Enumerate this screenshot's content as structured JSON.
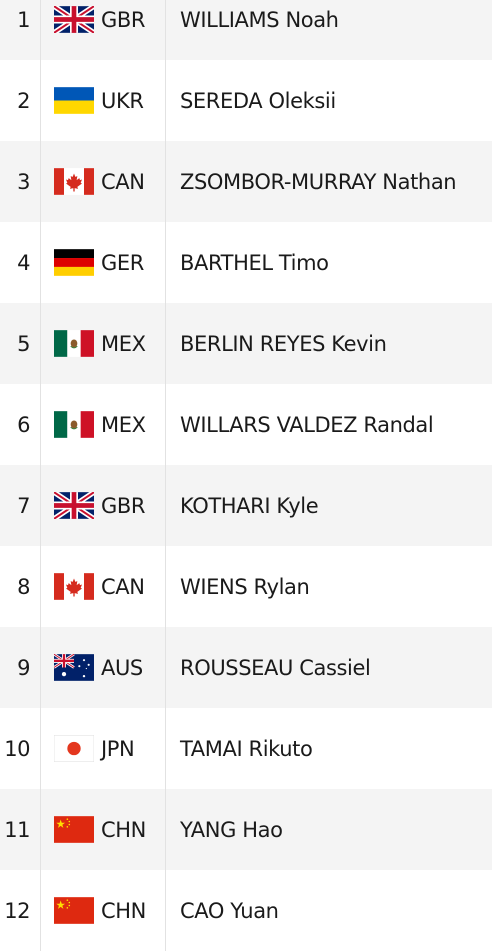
{
  "results": [
    {
      "rank": "1",
      "noc": "GBR",
      "flag_icon": "gbr-flag-icon",
      "athlete": "WILLIAMS Noah"
    },
    {
      "rank": "2",
      "noc": "UKR",
      "flag_icon": "ukr-flag-icon",
      "athlete": "SEREDA Oleksii"
    },
    {
      "rank": "3",
      "noc": "CAN",
      "flag_icon": "can-flag-icon",
      "athlete": "ZSOMBOR-MURRAY Nathan"
    },
    {
      "rank": "4",
      "noc": "GER",
      "flag_icon": "ger-flag-icon",
      "athlete": "BARTHEL Timo"
    },
    {
      "rank": "5",
      "noc": "MEX",
      "flag_icon": "mex-flag-icon",
      "athlete": "BERLIN REYES Kevin"
    },
    {
      "rank": "6",
      "noc": "MEX",
      "flag_icon": "mex-flag-icon",
      "athlete": "WILLARS VALDEZ Randal"
    },
    {
      "rank": "7",
      "noc": "GBR",
      "flag_icon": "gbr-flag-icon",
      "athlete": "KOTHARI Kyle"
    },
    {
      "rank": "8",
      "noc": "CAN",
      "flag_icon": "can-flag-icon",
      "athlete": "WIENS Rylan"
    },
    {
      "rank": "9",
      "noc": "AUS",
      "flag_icon": "aus-flag-icon",
      "athlete": "ROUSSEAU Cassiel"
    },
    {
      "rank": "10",
      "noc": "JPN",
      "flag_icon": "jpn-flag-icon",
      "athlete": "TAMAI Rikuto"
    },
    {
      "rank": "11",
      "noc": "CHN",
      "flag_icon": "chn-flag-icon",
      "athlete": "YANG Hao"
    },
    {
      "rank": "12",
      "noc": "CHN",
      "flag_icon": "chn-flag-icon",
      "athlete": "CAO Yuan"
    }
  ],
  "colors": {
    "row_alt_bg": "#f4f4f4",
    "text": "#1a1a1a",
    "divider": "#e2e2e2"
  }
}
